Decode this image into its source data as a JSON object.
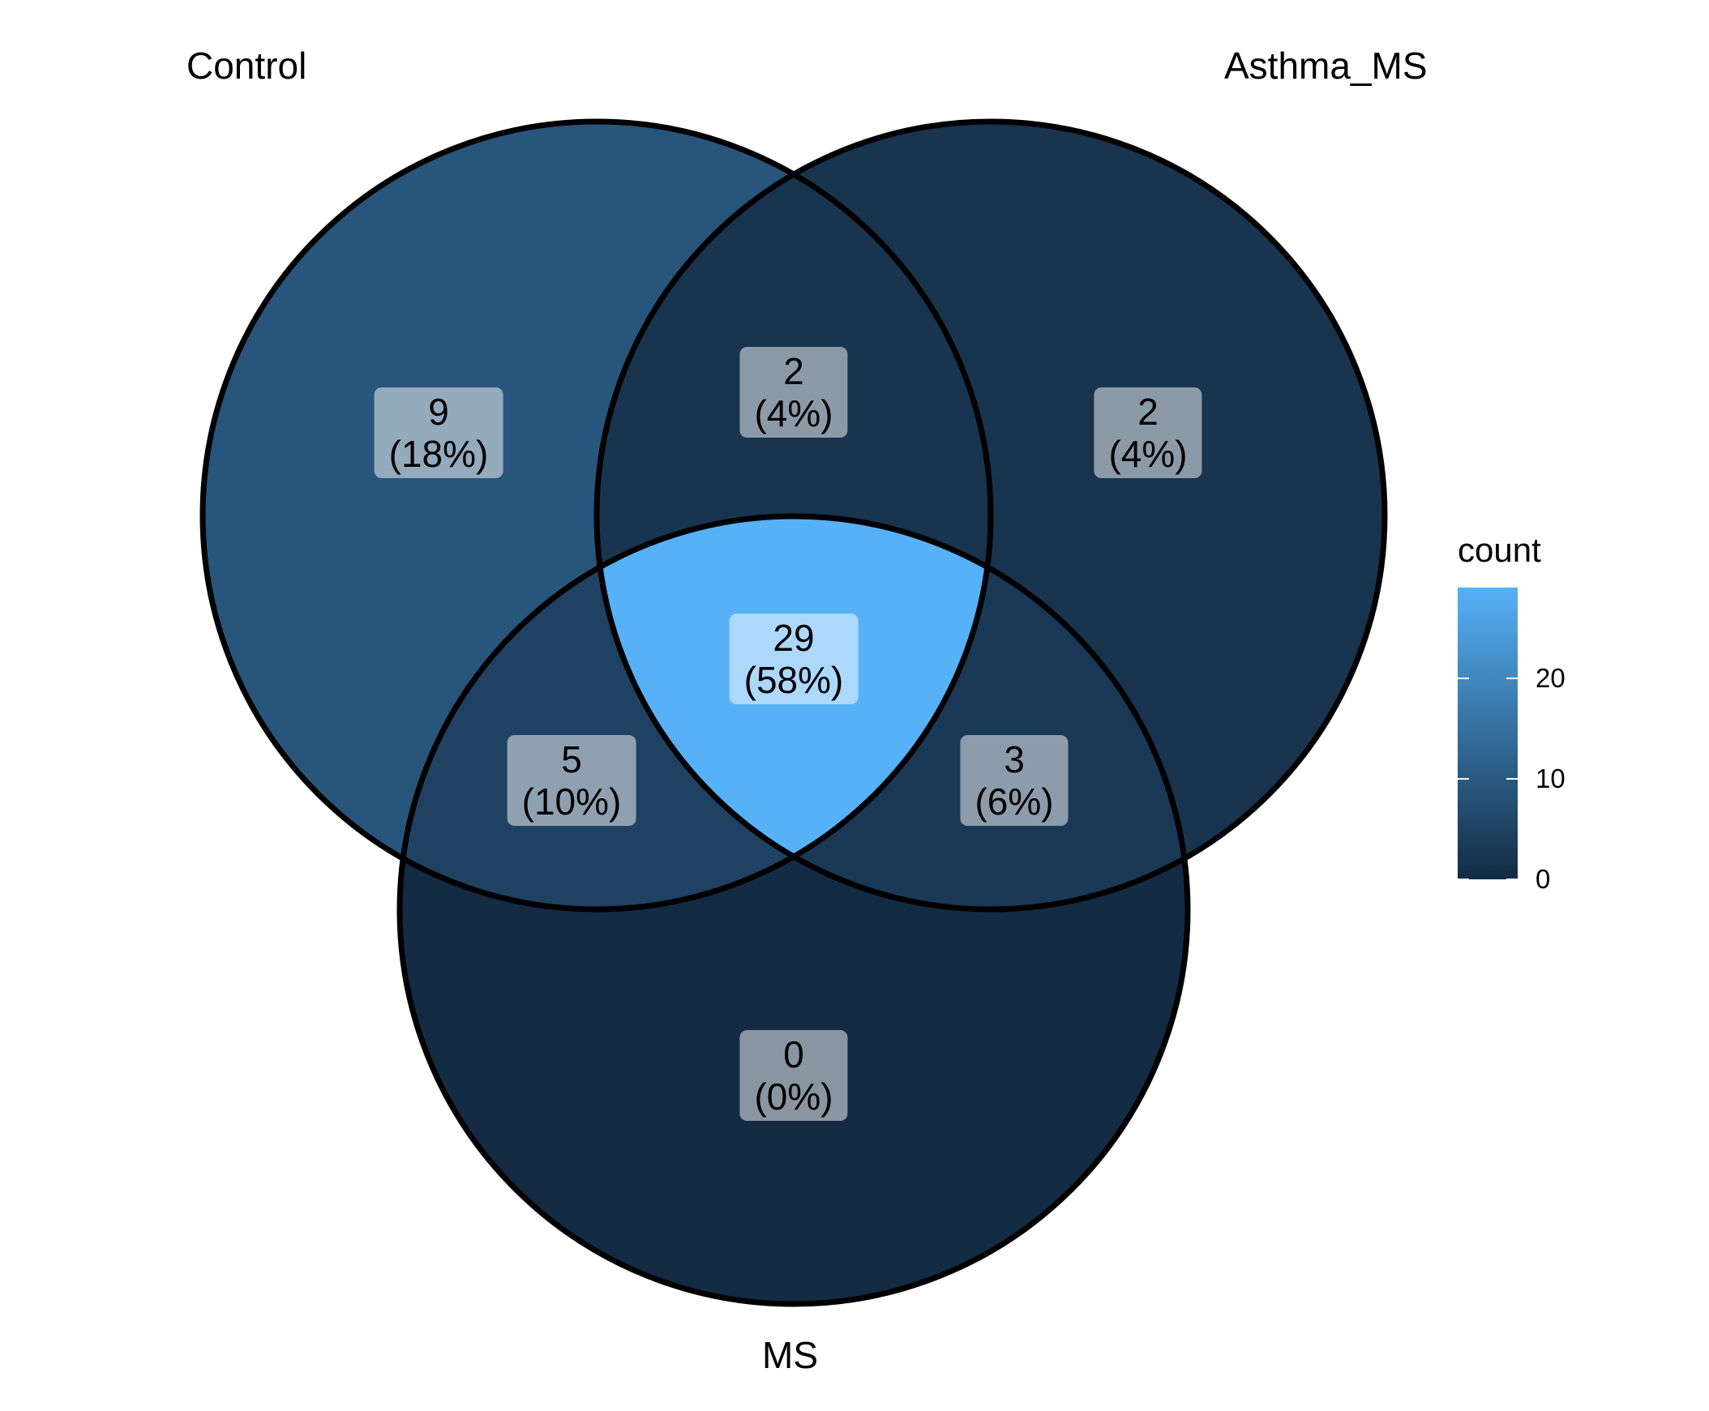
{
  "sets": [
    {
      "name": "Control"
    },
    {
      "name": "Asthma_MS"
    },
    {
      "name": "MS"
    }
  ],
  "regions": [
    {
      "id": "control-only",
      "count": "9",
      "percent": "(18%)",
      "value": 9
    },
    {
      "id": "asthma-only",
      "count": "2",
      "percent": "(4%)",
      "value": 2
    },
    {
      "id": "ms-only",
      "count": "0",
      "percent": "(0%)",
      "value": 0
    },
    {
      "id": "control-asthma",
      "count": "2",
      "percent": "(4%)",
      "value": 2
    },
    {
      "id": "control-ms",
      "count": "5",
      "percent": "(10%)",
      "value": 5
    },
    {
      "id": "asthma-ms",
      "count": "3",
      "percent": "(6%)",
      "value": 3
    },
    {
      "id": "all-three",
      "count": "29",
      "percent": "(58%)",
      "value": 29
    }
  ],
  "legend": {
    "title": "count",
    "ticks": [
      {
        "label": "0",
        "value": 0
      },
      {
        "label": "10",
        "value": 10
      },
      {
        "label": "20",
        "value": 20
      }
    ],
    "range": [
      0,
      29
    ],
    "low_color": "#132B43",
    "high_color": "#56B1F7"
  },
  "colors": {
    "outline": "#000000",
    "label_box": "#ffffff"
  }
}
